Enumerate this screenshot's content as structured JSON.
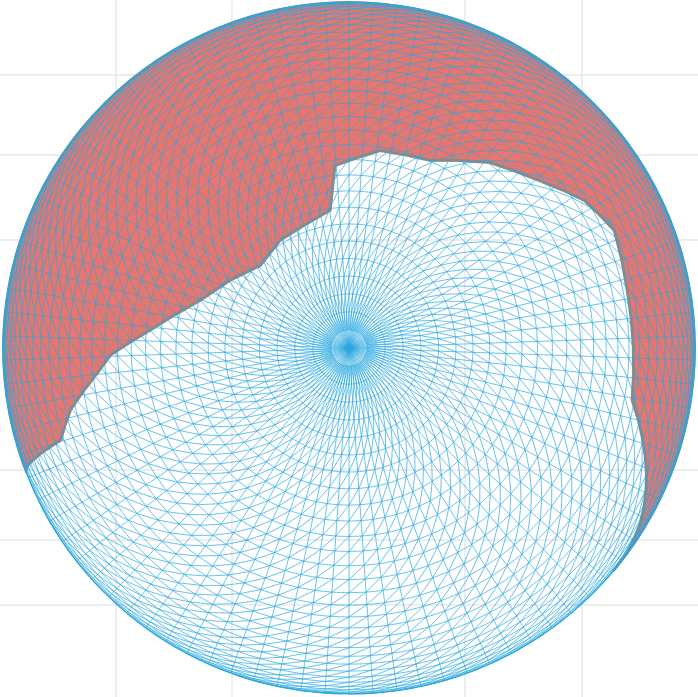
{
  "chart_data": {
    "type": "orthographic_mesh",
    "color": "#29a8e0",
    "grid": true,
    "tick_labels": false,
    "regions": [
      {
        "color": "#e8766e",
        "lon": [
          -69,
          -72.3,
          -77.5,
          -83.9,
          -88.3,
          -95.2,
          -107.9,
          -119.7,
          -133,
          -147.4,
          -172.2,
          -175.6,
          171.1,
          156.7,
          142.8,
          131.3,
          122.1,
          113.9,
          101.7,
          79.6,
          56.1,
          50,
          20,
          -10,
          -40
        ],
        "lat": [
          0,
          29,
          34.5,
          42.6,
          46.4,
          54.8,
          63.2,
          66.7,
          69.5,
          68.3,
          66.3,
          58.1,
          54.7,
          53.8,
          47.7,
          42.9,
          36.6,
          33,
          34.8,
          33.7,
          6.9,
          0,
          0,
          0,
          0
        ]
      }
    ]
  }
}
